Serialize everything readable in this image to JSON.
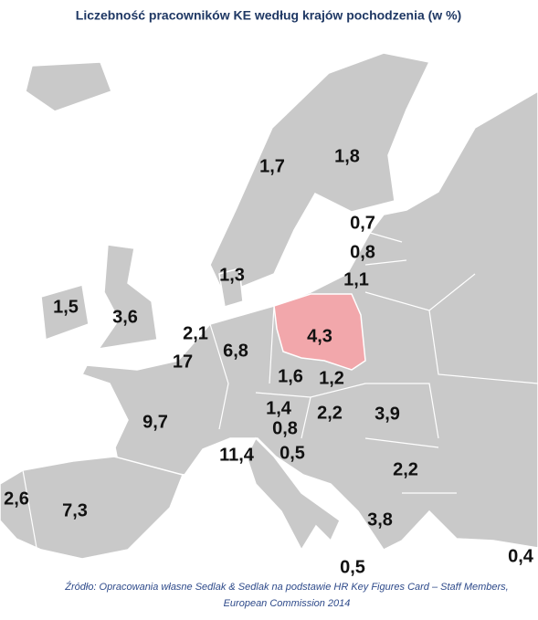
{
  "title": "Liczebność pracowników KE według krajów pochodzenia (w %)",
  "labels": [
    "1,8",
    "1,7",
    "0,7",
    "0,8",
    "1,3",
    "1,1",
    "1,5",
    "3,6",
    "2,1",
    "4,3",
    "6,8",
    "17",
    "1,6",
    "1,2",
    "9,7",
    "1,4",
    "2,2",
    "3,9",
    "0,8",
    "11,4",
    "0,5",
    "2,2",
    "2,6",
    "7,3",
    "3,8",
    "0,5",
    "0,4"
  ],
  "source": [
    "Źródło: Opracowania własne Sedlak & Sedlak na podstawie HR Key Figures Card – Staff Members,",
    "European Commission 2014"
  ]
}
